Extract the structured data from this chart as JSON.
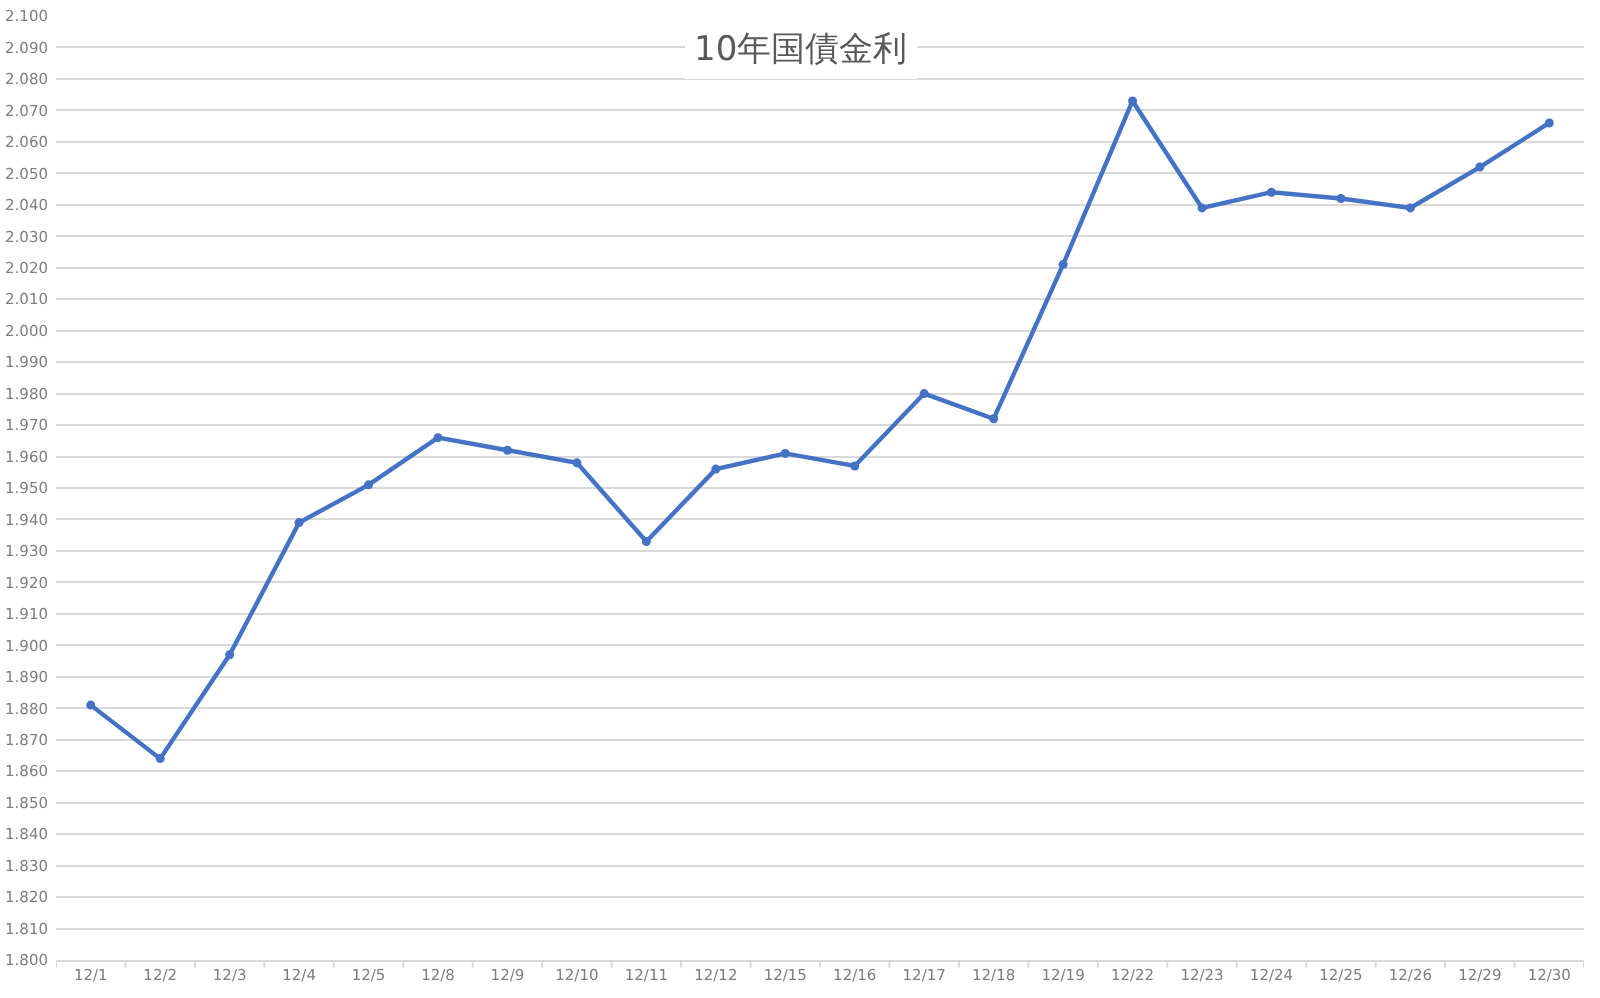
{
  "chart_data": {
    "type": "line",
    "title": "10年国債金利",
    "categories": [
      "12/1",
      "12/2",
      "12/3",
      "12/4",
      "12/5",
      "12/8",
      "12/9",
      "12/10",
      "12/11",
      "12/12",
      "12/15",
      "12/16",
      "12/17",
      "12/18",
      "12/19",
      "12/22",
      "12/23",
      "12/24",
      "12/25",
      "12/26",
      "12/29",
      "12/30"
    ],
    "series": [
      {
        "color": "#4472c4",
        "values": [
          1.881,
          1.864,
          1.897,
          1.939,
          1.951,
          1.966,
          1.962,
          1.958,
          1.933,
          1.956,
          1.961,
          1.957,
          1.98,
          1.972,
          2.021,
          2.073,
          2.039,
          2.044,
          2.042,
          2.039,
          2.052,
          2.066
        ]
      }
    ],
    "ylim": [
      1.8,
      2.1
    ],
    "yticks": [
      {
        "value": 1.8,
        "label": "1.800"
      },
      {
        "value": 1.81,
        "label": "1.810"
      },
      {
        "value": 1.82,
        "label": "1.820"
      },
      {
        "value": 1.83,
        "label": "1.830"
      },
      {
        "value": 1.84,
        "label": "1.840"
      },
      {
        "value": 1.85,
        "label": "1.850"
      },
      {
        "value": 1.86,
        "label": "1.860"
      },
      {
        "value": 1.87,
        "label": "1.870"
      },
      {
        "value": 1.88,
        "label": "1.880"
      },
      {
        "value": 1.89,
        "label": "1.890"
      },
      {
        "value": 1.9,
        "label": "1.900"
      },
      {
        "value": 1.91,
        "label": "1.910"
      },
      {
        "value": 1.92,
        "label": "1.920"
      },
      {
        "value": 1.93,
        "label": "1.930"
      },
      {
        "value": 1.94,
        "label": "1.940"
      },
      {
        "value": 1.95,
        "label": "1.950"
      },
      {
        "value": 1.96,
        "label": "1.960"
      },
      {
        "value": 1.97,
        "label": "1.970"
      },
      {
        "value": 1.98,
        "label": "1.980"
      },
      {
        "value": 1.99,
        "label": "1.990"
      },
      {
        "value": 2.0,
        "label": "2.000"
      },
      {
        "value": 2.01,
        "label": "2.010"
      },
      {
        "value": 2.02,
        "label": "2.020"
      },
      {
        "value": 2.03,
        "label": "2.030"
      },
      {
        "value": 2.04,
        "label": "2.040"
      },
      {
        "value": 2.05,
        "label": "2.050"
      },
      {
        "value": 2.06,
        "label": "2.060"
      },
      {
        "value": 2.07,
        "label": "2.070"
      },
      {
        "value": 2.08,
        "label": "2.080"
      },
      {
        "value": 2.09,
        "label": "2.090"
      },
      {
        "value": 2.1,
        "label": "2.100"
      }
    ],
    "grid": "y",
    "marker": "circle",
    "line_style": "solid"
  }
}
